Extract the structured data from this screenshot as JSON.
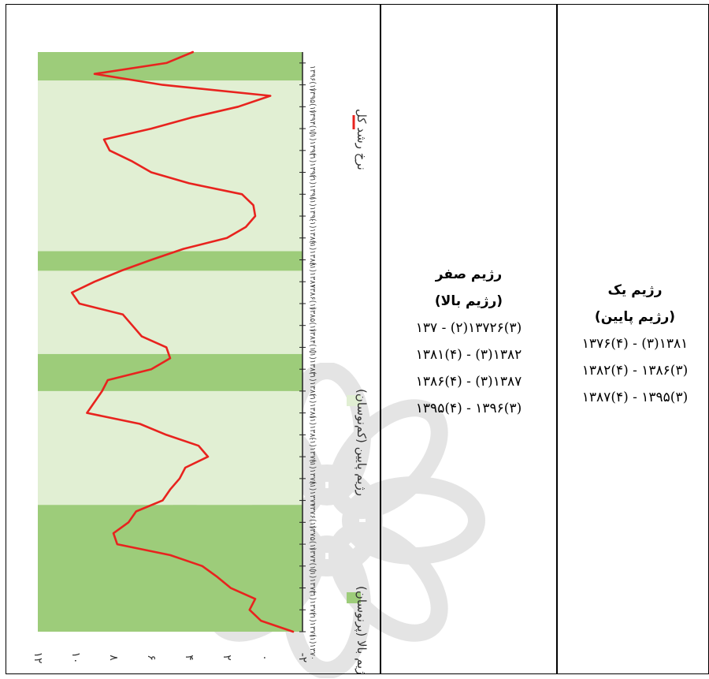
{
  "colors": {
    "growth_line": "#e8231e",
    "boom_band": "#9dcc7a",
    "recession_band": "#e1efd3",
    "axis": "#222222",
    "watermark": "#d9d9d9"
  },
  "chart_data": {
    "type": "line",
    "orientation": "rotated-90",
    "ylim": [
      -2,
      12
    ],
    "y_tick_labels": [
      "١٢",
      "١٠",
      "٨",
      "۶",
      "۴",
      "٢",
      "٠",
      "-٢"
    ],
    "y_ticks": [
      12,
      10,
      8,
      6,
      4,
      2,
      0,
      -2
    ],
    "x_tick_labels": [
      "١٣٧٠(١)",
      "١٣٧١(١)",
      "١٣٧٢(١)",
      "١٣٧٣(١)",
      "١٣٧۴(١)",
      "١٣٧۵(١)",
      "١٣٧۶(١)",
      "١٣٧٧(١)",
      "١٣٧٨(١)",
      "١٣٧٩(١)",
      "١٣٨٠(١)",
      "١٣٨١(١)",
      "١٣٨٢(١)",
      "١٣٨٣(١)",
      "١٣٨۴(١)",
      "١٣٨۵(١)",
      "١٣٨۶(١)",
      "١٣٨٧(١)",
      "١٣٨٨(١)",
      "١٣٨٩(١)",
      "١٣٩٠(١)",
      "١٣٩١(١)",
      "١٣٩٢(١)",
      "١٣٩٣(١)",
      "١٣٩۴(١)",
      "١٣٩۵(١)",
      "١٣٩۶(١)"
    ],
    "series": [
      {
        "name": "نرخ رشد کل",
        "x": [
          1370.0,
          1370.5,
          1371.0,
          1371.5,
          1372.0,
          1372.5,
          1373.0,
          1373.5,
          1374.0,
          1374.5,
          1375.0,
          1375.5,
          1376.0,
          1376.5,
          1377.0,
          1377.5,
          1378.0,
          1378.5,
          1379.0,
          1379.5,
          1380.0,
          1380.5,
          1381.0,
          1381.5,
          1382.0,
          1382.5,
          1383.0,
          1383.5,
          1384.0,
          1384.5,
          1385.0,
          1385.5,
          1386.0,
          1386.5,
          1387.0,
          1387.5,
          1388.0,
          1388.5,
          1389.0,
          1389.5,
          1390.0,
          1390.5,
          1391.0,
          1391.5,
          1392.0,
          1392.5,
          1393.0,
          1393.5,
          1394.0,
          1394.5,
          1395.0,
          1395.5,
          1396.0,
          1396.5
        ],
        "values": [
          -1.5,
          0.2,
          0.8,
          0.5,
          1.8,
          2.5,
          3.3,
          5.0,
          7.8,
          8.0,
          7.2,
          6.8,
          5.4,
          5.0,
          4.5,
          4.2,
          3.0,
          3.5,
          5.2,
          6.6,
          9.4,
          9.0,
          8.6,
          8.3,
          6.0,
          5.0,
          5.2,
          6.5,
          7.0,
          7.5,
          9.8,
          10.2,
          9.0,
          7.6,
          6.0,
          4.3,
          2.0,
          1.0,
          0.5,
          0.6,
          1.2,
          4.0,
          6.0,
          7.0,
          8.2,
          8.5,
          6.0,
          3.9,
          1.4,
          -0.3,
          5.4,
          9.0,
          5.2,
          3.8
        ]
      }
    ],
    "bands": [
      {
        "regime": "boom",
        "from": 1370.0,
        "to": 1375.8
      },
      {
        "regime": "recession",
        "from": 1375.8,
        "to": 1381.0
      },
      {
        "regime": "boom",
        "from": 1381.0,
        "to": 1382.7
      },
      {
        "regime": "recession",
        "from": 1382.7,
        "to": 1386.5
      },
      {
        "regime": "boom",
        "from": 1386.5,
        "to": 1387.4
      },
      {
        "regime": "recession",
        "from": 1387.4,
        "to": 1395.2
      },
      {
        "regime": "boom",
        "from": 1395.2,
        "to": 1396.5
      }
    ],
    "legend": [
      {
        "label": "رژیم بالا (پرنوسان)",
        "color": "#9dcc7a",
        "kind": "swatch"
      },
      {
        "label": "رژیم پایین (کم‌نوسان)",
        "color": "#e1efd3",
        "kind": "swatch"
      },
      {
        "label": "نرخ رشد کل",
        "color": "#e8231e",
        "kind": "line"
      }
    ],
    "legend_placement": "bottom",
    "grid": false
  },
  "regime_zero": {
    "title": "رژیم صفر",
    "subtitle": "(رژیم بالا)",
    "ranges": [
      "١٣٧٢(٢) - ١٣٧۶(٣)",
      "١٣٨١(۴) - ١٣٨٢(٣)",
      "١٣٨۶(۴) - ١٣٨٧(٣)",
      "١٣٩۵(۴) - ١٣٩۶(٣)"
    ]
  },
  "regime_one": {
    "title": "رژیم یک",
    "subtitle": "(رژیم پایین)",
    "ranges": [
      "١٣٧۶(۴) - ١٣٨١(٣)",
      "١٣٨٢(۴) - ١٣٨۶(٣)",
      "١٣٨٧(۴) - ١٣٩۵(٣)"
    ]
  }
}
